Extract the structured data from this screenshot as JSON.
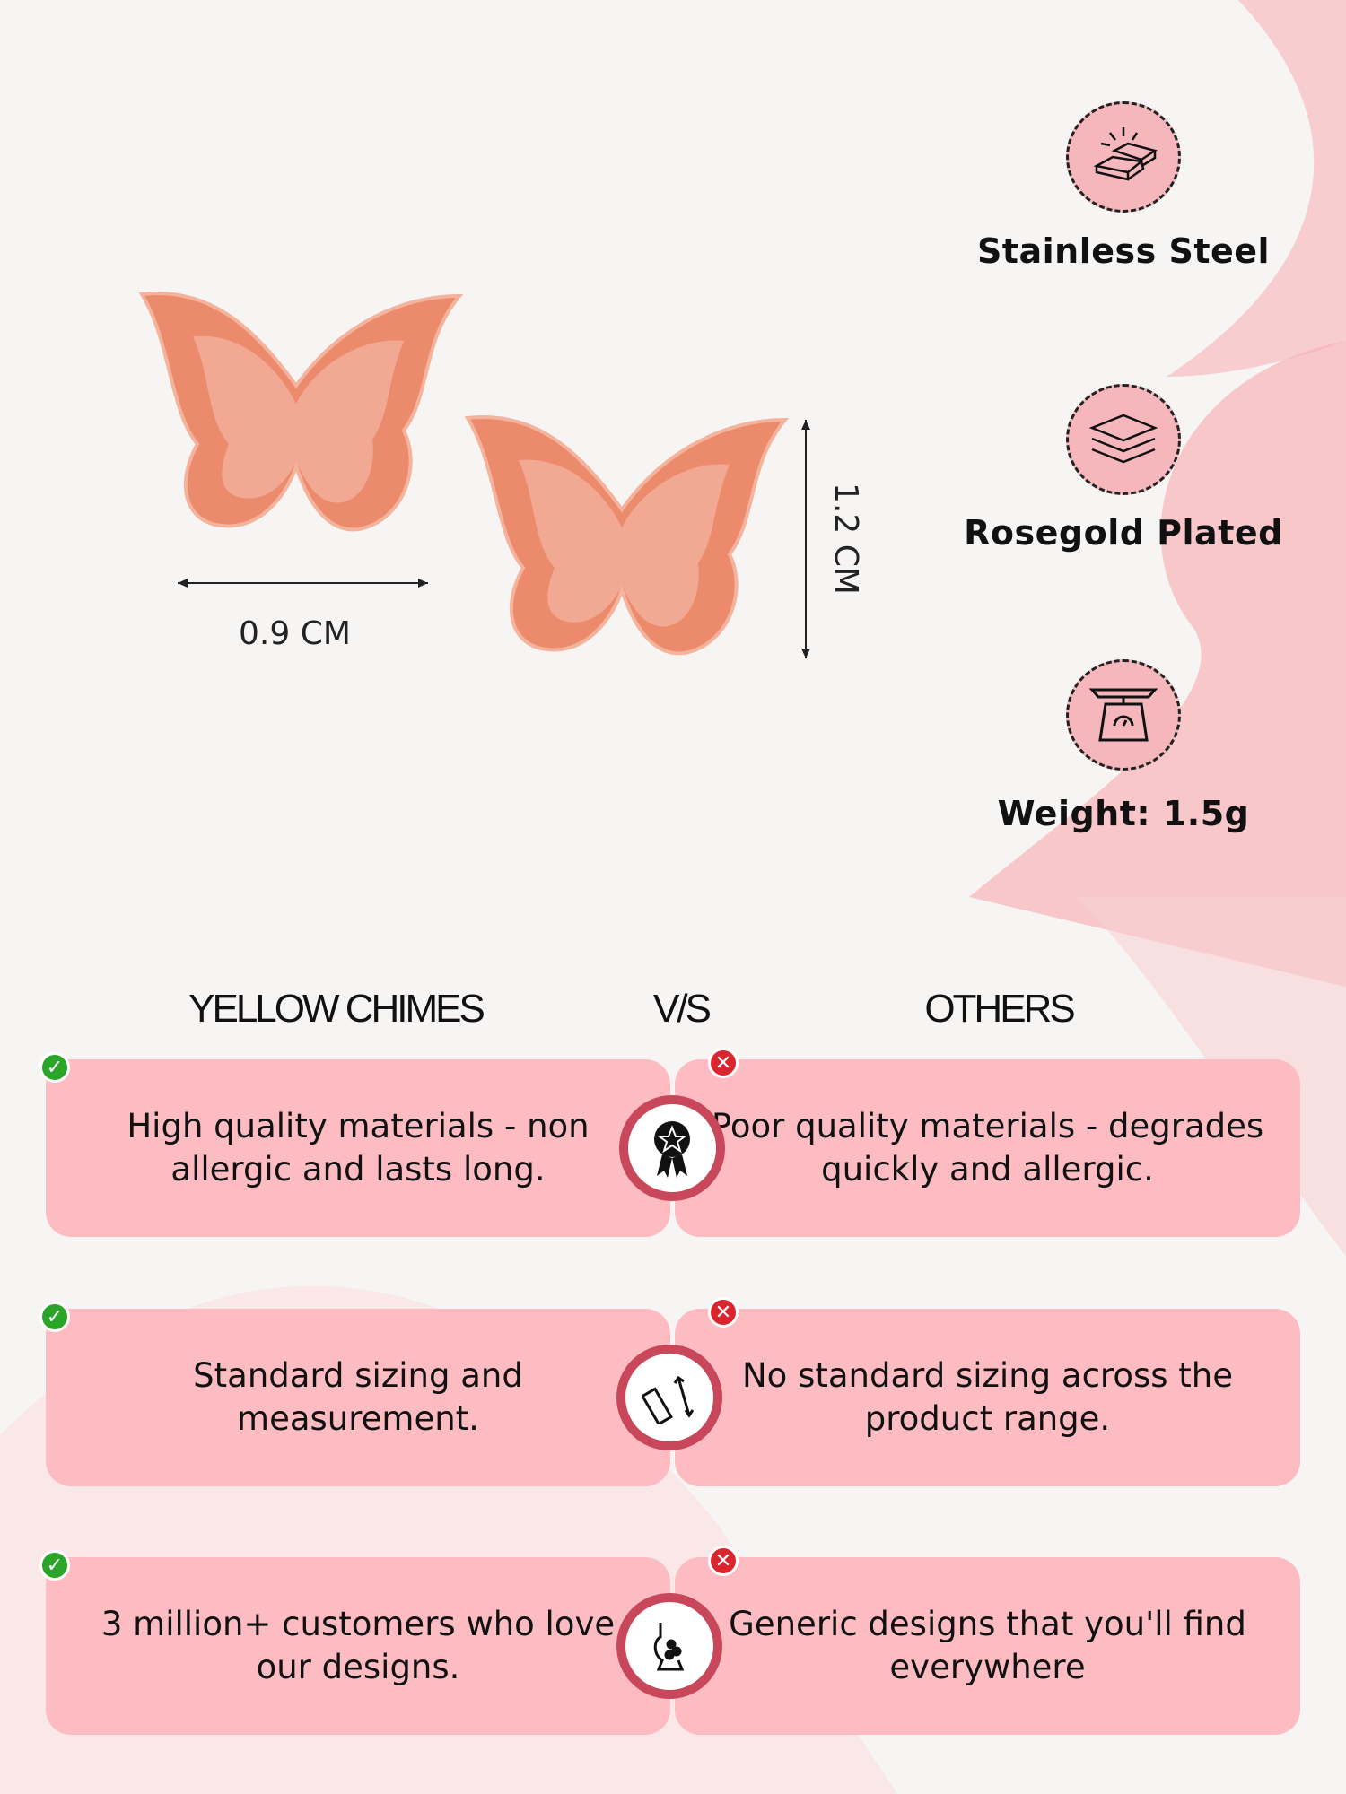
{
  "features": [
    {
      "label": "Stainless Steel",
      "icon": "gold-bars-icon"
    },
    {
      "label": "Rosegold Plated",
      "icon": "layers-icon"
    },
    {
      "label": "Weight: 1.5g",
      "icon": "scale-icon"
    }
  ],
  "dimensions": {
    "width": "0.9 CM",
    "height": "1.2 CM"
  },
  "comparison": {
    "left_title": "YELLOW CHIMES",
    "vs": "V/S",
    "right_title": "OTHERS",
    "rows": [
      {
        "ours": "High quality materials - non allergic and lasts long.",
        "others": "Poor quality materials - degrades quickly and allergic.",
        "icon": "award-ribbon-icon"
      },
      {
        "ours": "Standard sizing and measurement.",
        "others": "No standard sizing across the product range.",
        "icon": "ruler-icon"
      },
      {
        "ours": "3 million+ customers who love our designs.",
        "others": "Generic designs that you'll find everywhere",
        "icon": "jewelry-bust-icon"
      }
    ]
  },
  "colors": {
    "pink": "#fdbcc1",
    "accent": "#c8475a",
    "rosegold": "#e8876a",
    "check": "#2aa52a",
    "cross": "#d9262e"
  }
}
